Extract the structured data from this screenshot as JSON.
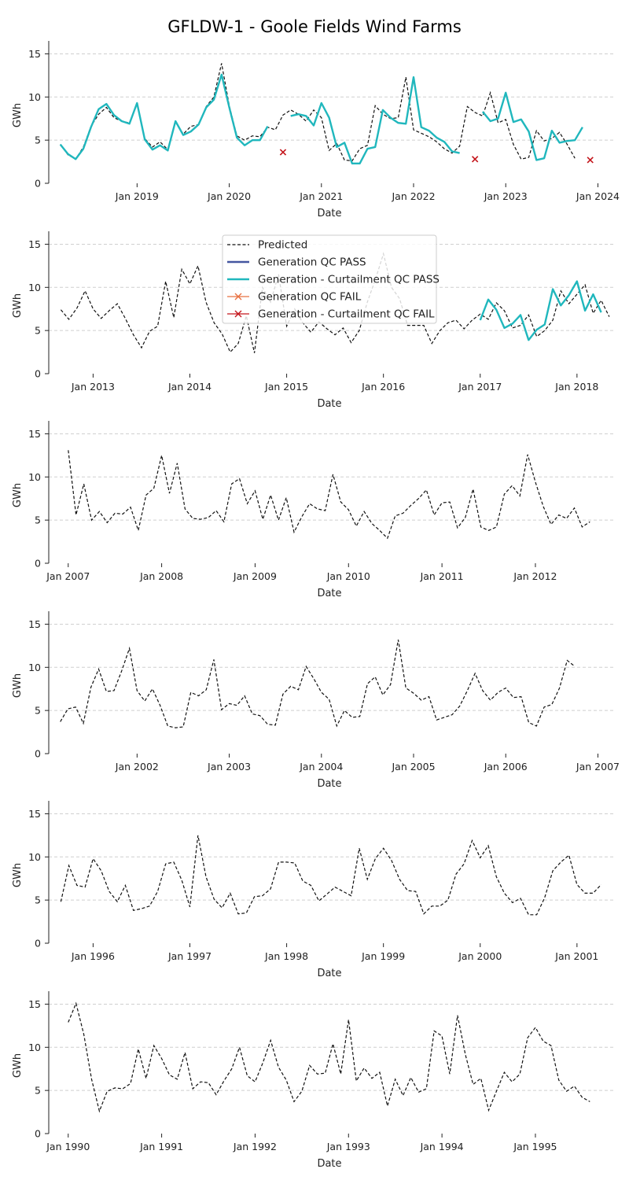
{
  "figure_title": "GFLDW-1 - Goole Fields Wind Farms",
  "colors": {
    "predicted": "#111111",
    "gen_pass": "#4456a0",
    "gen_curt_pass": "#20b7bd",
    "gen_fail": "#e87040",
    "gen_curt_fail": "#c4161c",
    "grid": "#cfcfcf"
  },
  "legend": {
    "items": [
      {
        "label": "Predicted",
        "style": "dashed",
        "color_key": "predicted"
      },
      {
        "label": "Generation QC PASS",
        "style": "solid",
        "color_key": "gen_pass"
      },
      {
        "label": "Generation - Curtailment QC PASS",
        "style": "solid",
        "color_key": "gen_curt_pass"
      },
      {
        "label": "Generation QC FAIL",
        "style": "x-line",
        "color_key": "gen_fail"
      },
      {
        "label": "Generation - Curtailment QC FAIL",
        "style": "x-line",
        "color_key": "gen_curt_fail"
      }
    ],
    "placement": "upper-center of second panel"
  },
  "chart_data": [
    {
      "type": "line",
      "xlabel": "Date",
      "ylabel": "GWh",
      "ylim": [
        0,
        16.5
      ],
      "yticks": [
        0,
        5,
        10,
        15
      ],
      "grid": "horizontal dashed",
      "x_start": "2018-03",
      "xlim_months": [
        -1.5,
        72
      ],
      "xticks": [
        {
          "label": "Jan 2019",
          "month": 10
        },
        {
          "label": "Jan 2020",
          "month": 22
        },
        {
          "label": "Jan 2021",
          "month": 34
        },
        {
          "label": "Jan 2022",
          "month": 46
        },
        {
          "label": "Jan 2023",
          "month": 58
        },
        {
          "label": "Jan 2024",
          "month": 70
        }
      ],
      "series": [
        {
          "name": "Predicted",
          "kind": "predicted",
          "values": [
            4.5,
            3.3,
            2.8,
            4.2,
            6.6,
            8.0,
            8.8,
            7.6,
            7.2,
            7.0,
            9.2,
            5.2,
            4.2,
            4.8,
            3.9,
            7.2,
            5.7,
            6.6,
            6.8,
            8.9,
            10.0,
            13.9,
            9.0,
            5.5,
            5.0,
            5.5,
            5.4,
            6.5,
            6.2,
            7.9,
            8.5,
            8.0,
            7.2,
            8.5,
            7.6,
            3.8,
            4.6,
            2.7,
            2.6,
            4.0,
            4.4,
            9.0,
            8.0,
            7.5,
            7.6,
            12.3,
            6.2,
            5.8,
            5.4,
            4.8,
            4.0,
            3.5,
            4.3,
            8.9,
            8.2,
            7.8,
            10.5,
            7.0,
            7.4,
            4.5,
            2.8,
            3.0,
            6.1,
            4.9,
            5.2,
            5.9,
            4.5,
            2.9
          ]
        },
        {
          "name": "Generation - Curtailment QC PASS",
          "kind": "gen_curt_pass",
          "segments": [
            {
              "start": 0,
              "values": [
                4.5,
                3.4,
                2.8,
                4.0,
                6.5,
                8.6,
                9.2,
                7.9,
                7.2,
                6.9,
                9.3,
                5.1,
                3.9,
                4.4,
                3.8,
                7.2,
                5.6,
                6.0,
                6.8,
                8.8,
                9.7,
                12.6,
                8.8,
                5.3,
                4.4,
                5.0,
                5.0,
                6.6
              ]
            },
            {
              "start": 30,
              "values": [
                7.8,
                8.0,
                7.8,
                6.7,
                9.3,
                7.6,
                4.2,
                4.7,
                2.3,
                2.3,
                4.0,
                4.2,
                8.5,
                7.6,
                7.0,
                6.9,
                12.3,
                6.5,
                6.1,
                5.3,
                4.8,
                3.7,
                3.5
              ]
            },
            {
              "start": 55,
              "values": [
                8.3,
                7.2,
                7.5,
                10.5,
                7.1,
                7.4,
                6.0,
                2.7,
                2.9,
                6.1,
                4.7,
                4.9,
                5.0,
                6.5
              ]
            }
          ]
        },
        {
          "name": "Generation - Curtailment QC FAIL",
          "kind": "gen_curt_fail",
          "points": [
            {
              "month": 29,
              "value": 3.6
            },
            {
              "month": 54,
              "value": 2.8
            },
            {
              "month": 69,
              "value": 2.7
            }
          ]
        }
      ]
    },
    {
      "type": "line",
      "xlabel": "Date",
      "ylabel": "GWh",
      "ylim": [
        0,
        16.5
      ],
      "yticks": [
        0,
        5,
        10,
        15
      ],
      "grid": "horizontal dashed",
      "x_start": "2012-09",
      "xlim_months": [
        -1.5,
        68.5
      ],
      "xticks": [
        {
          "label": "Jan 2013",
          "month": 4
        },
        {
          "label": "Jan 2014",
          "month": 16
        },
        {
          "label": "Jan 2015",
          "month": 28
        },
        {
          "label": "Jan 2016",
          "month": 40
        },
        {
          "label": "Jan 2017",
          "month": 52
        },
        {
          "label": "Jan 2018",
          "month": 64
        }
      ],
      "series": [
        {
          "name": "Predicted",
          "kind": "predicted",
          "values": [
            7.4,
            6.3,
            7.6,
            9.6,
            7.5,
            6.4,
            7.3,
            8.1,
            6.4,
            4.5,
            3.0,
            4.9,
            5.5,
            10.7,
            6.5,
            12.1,
            10.4,
            12.5,
            8.3,
            5.9,
            4.6,
            2.5,
            3.5,
            6.7,
            2.4,
            10.0,
            8.3,
            11.5,
            5.5,
            7.5,
            5.9,
            4.8,
            6.0,
            5.2,
            4.5,
            5.3,
            3.6,
            5.0,
            8.3,
            10.9,
            13.9,
            10.0,
            8.7,
            5.6,
            5.6,
            5.6,
            3.5,
            5.0,
            5.9,
            6.2,
            5.2,
            6.2,
            6.9,
            6.3,
            8.2,
            7.3,
            5.3,
            5.6,
            6.8,
            4.3,
            5.0,
            6.2,
            9.6,
            8.1,
            9.2,
            10.3,
            7.0,
            8.5,
            6.6
          ]
        },
        {
          "name": "Generation - Curtailment QC PASS",
          "kind": "gen_curt_pass",
          "segments": [
            {
              "start": 52,
              "values": [
                6.2,
                8.6,
                7.4,
                5.3,
                5.8,
                6.8,
                3.9,
                5.1,
                5.7,
                9.8,
                7.9,
                9.1,
                10.7,
                7.3,
                9.2,
                7.1
              ]
            }
          ]
        }
      ]
    },
    {
      "type": "line",
      "xlabel": "Date",
      "ylabel": "GWh",
      "ylim": [
        0,
        16.5
      ],
      "yticks": [
        0,
        5,
        10,
        15
      ],
      "grid": "horizontal dashed",
      "x_start": "2007-01",
      "xlim_months": [
        -2.5,
        70
      ],
      "xticks": [
        {
          "label": "Jan 2007",
          "month": 0
        },
        {
          "label": "Jan 2008",
          "month": 12
        },
        {
          "label": "Jan 2009",
          "month": 24
        },
        {
          "label": "Jan 2010",
          "month": 36
        },
        {
          "label": "Jan 2011",
          "month": 48
        },
        {
          "label": "Jan 2012",
          "month": 60
        }
      ],
      "series": [
        {
          "name": "Predicted",
          "kind": "predicted",
          "values": [
            13.1,
            5.6,
            9.2,
            5.0,
            6.0,
            4.7,
            5.8,
            5.7,
            6.5,
            3.8,
            7.9,
            8.7,
            12.5,
            8.1,
            11.6,
            6.3,
            5.2,
            5.1,
            5.3,
            6.1,
            4.8,
            9.2,
            9.8,
            6.9,
            8.4,
            5.1,
            7.9,
            5.0,
            7.6,
            3.6,
            5.4,
            6.9,
            6.3,
            6.1,
            10.3,
            7.1,
            6.2,
            4.3,
            6.0,
            4.6,
            3.8,
            2.9,
            5.5,
            5.8,
            6.7,
            7.5,
            8.5,
            5.6,
            7.0,
            7.1,
            4.1,
            5.3,
            8.6,
            4.2,
            3.8,
            4.2,
            8.0,
            9.0,
            7.8,
            12.6,
            9.4,
            6.6,
            4.5,
            5.6,
            5.2,
            6.4,
            4.2,
            4.8
          ]
        }
      ]
    },
    {
      "type": "line",
      "xlabel": "Date",
      "ylabel": "GWh",
      "ylim": [
        0,
        16.5
      ],
      "yticks": [
        0,
        5,
        10,
        15
      ],
      "grid": "horizontal dashed",
      "x_start": "2001-03",
      "xlim_months": [
        -1.5,
        72
      ],
      "xticks": [
        {
          "label": "Jan 2002",
          "month": 10
        },
        {
          "label": "Jan 2003",
          "month": 22
        },
        {
          "label": "Jan 2004",
          "month": 34
        },
        {
          "label": "Jan 2005",
          "month": 46
        },
        {
          "label": "Jan 2006",
          "month": 58
        },
        {
          "label": "Jan 2007",
          "month": 70
        }
      ],
      "series": [
        {
          "name": "Predicted",
          "kind": "predicted",
          "values": [
            3.7,
            5.2,
            5.4,
            3.5,
            7.7,
            9.8,
            7.2,
            7.3,
            9.6,
            12.2,
            7.3,
            6.1,
            7.5,
            5.6,
            3.2,
            3.0,
            3.1,
            7.1,
            6.7,
            7.4,
            10.9,
            5.1,
            5.8,
            5.6,
            6.7,
            4.6,
            4.4,
            3.4,
            3.3,
            6.9,
            7.8,
            7.4,
            10.1,
            8.7,
            7.1,
            6.3,
            3.2,
            5.0,
            4.2,
            4.3,
            8.1,
            8.9,
            6.8,
            8.0,
            13.2,
            7.6,
            7.0,
            6.2,
            6.6,
            3.9,
            4.2,
            4.5,
            5.5,
            7.3,
            9.3,
            7.3,
            6.2,
            7.1,
            7.6,
            6.5,
            6.6,
            3.6,
            3.2,
            5.4,
            5.7,
            7.6,
            10.8,
            10.1
          ]
        }
      ]
    },
    {
      "type": "line",
      "xlabel": "Date",
      "ylabel": "GWh",
      "ylim": [
        0,
        16.5
      ],
      "yticks": [
        0,
        5,
        10,
        15
      ],
      "grid": "horizontal dashed",
      "x_start": "1995-09",
      "xlim_months": [
        -1.5,
        68.5
      ],
      "xticks": [
        {
          "label": "Jan 1996",
          "month": 4
        },
        {
          "label": "Jan 1997",
          "month": 16
        },
        {
          "label": "Jan 1998",
          "month": 28
        },
        {
          "label": "Jan 1999",
          "month": 40
        },
        {
          "label": "Jan 2000",
          "month": 52
        },
        {
          "label": "Jan 2001",
          "month": 64
        }
      ],
      "series": [
        {
          "name": "Predicted",
          "kind": "predicted",
          "values": [
            4.8,
            9.0,
            6.7,
            6.5,
            9.8,
            8.4,
            6.0,
            4.8,
            6.7,
            3.8,
            4.0,
            4.3,
            6.0,
            9.2,
            9.4,
            7.3,
            4.2,
            12.5,
            7.7,
            5.1,
            4.1,
            5.8,
            3.4,
            3.5,
            5.4,
            5.5,
            6.3,
            9.4,
            9.4,
            9.3,
            7.2,
            6.7,
            4.9,
            5.7,
            6.5,
            6.0,
            5.5,
            11.0,
            7.4,
            9.8,
            11.0,
            9.6,
            7.4,
            6.1,
            6.0,
            3.4,
            4.3,
            4.3,
            5.0,
            8.0,
            9.2,
            11.9,
            9.9,
            11.3,
            7.7,
            5.8,
            4.7,
            5.2,
            3.3,
            3.3,
            5.3,
            8.4,
            9.4,
            10.2,
            6.8,
            5.8,
            5.8,
            6.8
          ]
        }
      ]
    },
    {
      "type": "line",
      "xlabel": "Date",
      "ylabel": "GWh",
      "ylim": [
        0,
        16.5
      ],
      "yticks": [
        0,
        5,
        10,
        15
      ],
      "grid": "horizontal dashed",
      "x_start": "1990-01",
      "xlim_months": [
        -2.5,
        70
      ],
      "xticks": [
        {
          "label": "Jan 1990",
          "month": 0
        },
        {
          "label": "Jan 1991",
          "month": 12
        },
        {
          "label": "Jan 1992",
          "month": 24
        },
        {
          "label": "Jan 1993",
          "month": 36
        },
        {
          "label": "Jan 1994",
          "month": 48
        },
        {
          "label": "Jan 1995",
          "month": 60
        }
      ],
      "series": [
        {
          "name": "Predicted",
          "kind": "predicted",
          "values": [
            12.9,
            15.1,
            11.5,
            6.3,
            2.6,
            4.9,
            5.3,
            5.2,
            5.8,
            9.8,
            6.4,
            10.2,
            8.7,
            6.8,
            6.3,
            9.4,
            5.2,
            6.0,
            5.9,
            4.5,
            6.1,
            7.5,
            10.0,
            6.7,
            6.0,
            8.2,
            10.8,
            7.7,
            6.2,
            3.7,
            4.9,
            7.9,
            6.9,
            7.0,
            10.4,
            6.9,
            13.2,
            6.1,
            7.6,
            6.4,
            7.1,
            3.2,
            6.3,
            4.4,
            6.5,
            4.8,
            5.2,
            11.9,
            11.3,
            6.9,
            13.7,
            9.2,
            5.7,
            6.4,
            2.7,
            4.9,
            7.1,
            6.0,
            6.9,
            11.1,
            12.3,
            10.7,
            10.2,
            6.2,
            4.9,
            5.5,
            4.2,
            3.7
          ]
        }
      ]
    }
  ]
}
